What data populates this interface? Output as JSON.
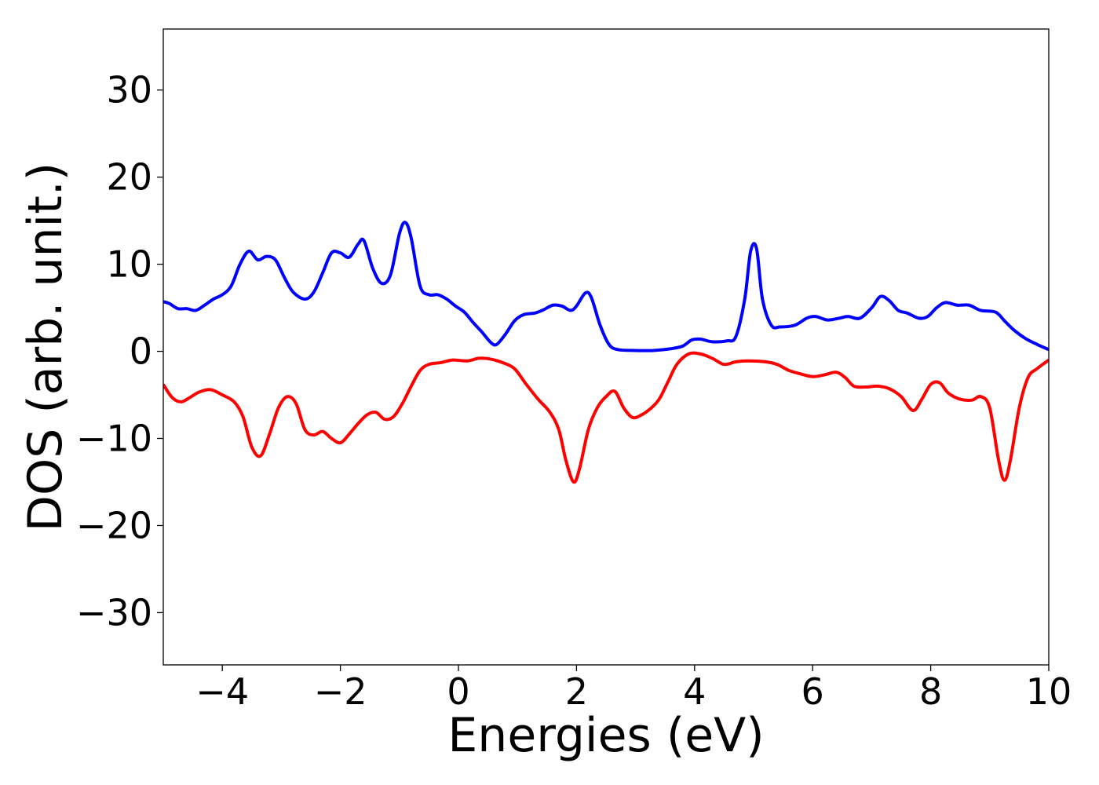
{
  "chart_data": {
    "type": "line",
    "title": "",
    "xlabel": "Energies (eV)",
    "ylabel": "DOS (arb. unit.)",
    "xlim": [
      -5,
      10
    ],
    "ylim": [
      -36,
      37
    ],
    "x_ticks": [
      -4,
      -2,
      0,
      2,
      4,
      6,
      8,
      10
    ],
    "x_tick_labels": [
      "−4",
      "−2",
      "0",
      "2",
      "4",
      "6",
      "8",
      "10"
    ],
    "y_ticks": [
      -30,
      -20,
      -10,
      0,
      10,
      20,
      30
    ],
    "y_tick_labels": [
      "−30",
      "−20",
      "−10",
      "0",
      "10",
      "20",
      "30"
    ],
    "grid": false,
    "legend": "none",
    "series": [
      {
        "color": "#0000ff",
        "points": [
          [
            -5.0,
            5.7
          ],
          [
            -4.9,
            5.5
          ],
          [
            -4.75,
            4.9
          ],
          [
            -4.6,
            4.9
          ],
          [
            -4.45,
            4.7
          ],
          [
            -4.3,
            5.3
          ],
          [
            -4.15,
            6.0
          ],
          [
            -4.0,
            6.5
          ],
          [
            -3.85,
            7.5
          ],
          [
            -3.7,
            10.0
          ],
          [
            -3.55,
            11.5
          ],
          [
            -3.4,
            10.5
          ],
          [
            -3.25,
            10.9
          ],
          [
            -3.1,
            10.5
          ],
          [
            -2.95,
            8.5
          ],
          [
            -2.8,
            6.8
          ],
          [
            -2.6,
            6.0
          ],
          [
            -2.45,
            6.8
          ],
          [
            -2.3,
            9.0
          ],
          [
            -2.15,
            11.3
          ],
          [
            -2.0,
            11.3
          ],
          [
            -1.85,
            10.8
          ],
          [
            -1.7,
            12.3
          ],
          [
            -1.6,
            12.7
          ],
          [
            -1.45,
            9.5
          ],
          [
            -1.3,
            7.8
          ],
          [
            -1.15,
            8.8
          ],
          [
            -1.0,
            13.5
          ],
          [
            -0.9,
            14.8
          ],
          [
            -0.8,
            13.0
          ],
          [
            -0.65,
            7.5
          ],
          [
            -0.5,
            6.5
          ],
          [
            -0.35,
            6.5
          ],
          [
            -0.2,
            6.0
          ],
          [
            -0.05,
            5.2
          ],
          [
            0.1,
            4.5
          ],
          [
            0.25,
            3.3
          ],
          [
            0.4,
            2.2
          ],
          [
            0.55,
            1.0
          ],
          [
            0.65,
            0.8
          ],
          [
            0.8,
            2.0
          ],
          [
            0.95,
            3.5
          ],
          [
            1.1,
            4.2
          ],
          [
            1.3,
            4.4
          ],
          [
            1.45,
            4.8
          ],
          [
            1.6,
            5.3
          ],
          [
            1.75,
            5.2
          ],
          [
            1.9,
            4.7
          ],
          [
            2.0,
            5.2
          ],
          [
            2.15,
            6.7
          ],
          [
            2.25,
            6.2
          ],
          [
            2.4,
            3.0
          ],
          [
            2.55,
            0.8
          ],
          [
            2.7,
            0.2
          ],
          [
            3.0,
            0.1
          ],
          [
            3.3,
            0.1
          ],
          [
            3.6,
            0.3
          ],
          [
            3.8,
            0.6
          ],
          [
            3.95,
            1.3
          ],
          [
            4.1,
            1.4
          ],
          [
            4.3,
            1.1
          ],
          [
            4.55,
            1.2
          ],
          [
            4.7,
            1.7
          ],
          [
            4.85,
            6.0
          ],
          [
            4.95,
            11.5
          ],
          [
            5.05,
            11.8
          ],
          [
            5.15,
            6.0
          ],
          [
            5.3,
            3.0
          ],
          [
            5.45,
            2.8
          ],
          [
            5.7,
            3.0
          ],
          [
            5.9,
            3.8
          ],
          [
            6.05,
            4.0
          ],
          [
            6.25,
            3.6
          ],
          [
            6.45,
            3.8
          ],
          [
            6.6,
            4.0
          ],
          [
            6.8,
            3.8
          ],
          [
            7.0,
            5.0
          ],
          [
            7.15,
            6.3
          ],
          [
            7.3,
            5.8
          ],
          [
            7.45,
            4.7
          ],
          [
            7.6,
            4.4
          ],
          [
            7.8,
            3.8
          ],
          [
            7.95,
            4.0
          ],
          [
            8.1,
            5.0
          ],
          [
            8.25,
            5.6
          ],
          [
            8.45,
            5.3
          ],
          [
            8.65,
            5.3
          ],
          [
            8.85,
            4.7
          ],
          [
            9.1,
            4.5
          ],
          [
            9.25,
            3.5
          ],
          [
            9.4,
            2.5
          ],
          [
            9.6,
            1.5
          ],
          [
            9.8,
            0.8
          ],
          [
            10.0,
            0.2
          ]
        ]
      },
      {
        "color": "#ff0000",
        "points": [
          [
            -5.0,
            -3.8
          ],
          [
            -4.85,
            -5.3
          ],
          [
            -4.7,
            -5.8
          ],
          [
            -4.55,
            -5.3
          ],
          [
            -4.4,
            -4.7
          ],
          [
            -4.2,
            -4.4
          ],
          [
            -4.0,
            -5.0
          ],
          [
            -3.8,
            -5.8
          ],
          [
            -3.65,
            -7.5
          ],
          [
            -3.5,
            -11.0
          ],
          [
            -3.35,
            -12.0
          ],
          [
            -3.2,
            -9.5
          ],
          [
            -3.05,
            -6.5
          ],
          [
            -2.9,
            -5.2
          ],
          [
            -2.75,
            -6.0
          ],
          [
            -2.6,
            -9.0
          ],
          [
            -2.45,
            -9.6
          ],
          [
            -2.3,
            -9.2
          ],
          [
            -2.15,
            -10.0
          ],
          [
            -2.0,
            -10.5
          ],
          [
            -1.85,
            -9.5
          ],
          [
            -1.7,
            -8.3
          ],
          [
            -1.55,
            -7.3
          ],
          [
            -1.4,
            -7.0
          ],
          [
            -1.25,
            -7.8
          ],
          [
            -1.1,
            -7.5
          ],
          [
            -0.95,
            -6.0
          ],
          [
            -0.8,
            -4.0
          ],
          [
            -0.65,
            -2.2
          ],
          [
            -0.5,
            -1.5
          ],
          [
            -0.3,
            -1.3
          ],
          [
            -0.1,
            -1.0
          ],
          [
            0.15,
            -1.1
          ],
          [
            0.35,
            -0.8
          ],
          [
            0.55,
            -0.9
          ],
          [
            0.75,
            -1.3
          ],
          [
            0.95,
            -2.0
          ],
          [
            1.15,
            -3.8
          ],
          [
            1.35,
            -5.5
          ],
          [
            1.55,
            -7.0
          ],
          [
            1.7,
            -9.0
          ],
          [
            1.82,
            -12.5
          ],
          [
            1.95,
            -15.0
          ],
          [
            2.05,
            -13.5
          ],
          [
            2.2,
            -9.0
          ],
          [
            2.35,
            -6.5
          ],
          [
            2.5,
            -5.2
          ],
          [
            2.65,
            -4.6
          ],
          [
            2.8,
            -6.5
          ],
          [
            2.95,
            -7.6
          ],
          [
            3.1,
            -7.3
          ],
          [
            3.25,
            -6.6
          ],
          [
            3.4,
            -5.5
          ],
          [
            3.55,
            -3.5
          ],
          [
            3.7,
            -1.5
          ],
          [
            3.9,
            -0.3
          ],
          [
            4.1,
            -0.3
          ],
          [
            4.3,
            -0.8
          ],
          [
            4.5,
            -1.5
          ],
          [
            4.7,
            -1.2
          ],
          [
            4.9,
            -1.1
          ],
          [
            5.2,
            -1.2
          ],
          [
            5.4,
            -1.5
          ],
          [
            5.6,
            -2.2
          ],
          [
            5.8,
            -2.6
          ],
          [
            6.0,
            -2.9
          ],
          [
            6.2,
            -2.7
          ],
          [
            6.4,
            -2.4
          ],
          [
            6.55,
            -3.0
          ],
          [
            6.7,
            -4.0
          ],
          [
            6.9,
            -4.1
          ],
          [
            7.1,
            -4.0
          ],
          [
            7.3,
            -4.3
          ],
          [
            7.5,
            -5.2
          ],
          [
            7.7,
            -6.8
          ],
          [
            7.85,
            -5.5
          ],
          [
            8.0,
            -3.8
          ],
          [
            8.15,
            -3.6
          ],
          [
            8.3,
            -4.8
          ],
          [
            8.5,
            -5.5
          ],
          [
            8.7,
            -5.6
          ],
          [
            8.85,
            -5.2
          ],
          [
            9.0,
            -6.5
          ],
          [
            9.15,
            -12.5
          ],
          [
            9.25,
            -14.8
          ],
          [
            9.35,
            -12.5
          ],
          [
            9.5,
            -6.5
          ],
          [
            9.65,
            -3.0
          ],
          [
            9.8,
            -2.0
          ],
          [
            10.0,
            -1.0
          ]
        ]
      }
    ]
  }
}
